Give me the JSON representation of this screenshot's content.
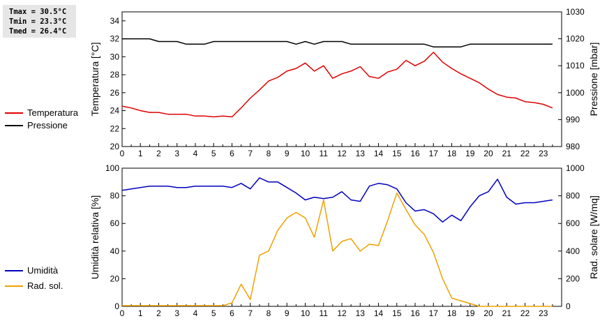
{
  "stats": {
    "tmax": "Tmax = 30.5°C",
    "tmin": "Tmin = 23.3°C",
    "tmed": "Tmed = 26.4°C"
  },
  "chart_data": [
    {
      "type": "line",
      "x_ticks": [
        "0",
        "1",
        "2",
        "3",
        "4",
        "5",
        "6",
        "7",
        "8",
        "9",
        "10",
        "11",
        "12",
        "13",
        "14",
        "15",
        "16",
        "17",
        "18",
        "19",
        "20",
        "21",
        "22",
        "23"
      ],
      "xlim": [
        0,
        24
      ],
      "ylabel_left": "Temperatura [°C]",
      "ylim_left": [
        20,
        35
      ],
      "yticks_left": [
        "20",
        "22",
        "24",
        "26",
        "28",
        "30",
        "32",
        "34"
      ],
      "ylabel_right": "Pressione [mbar]",
      "ylim_right": [
        980,
        1030
      ],
      "yticks_right": [
        "980",
        "990",
        "1000",
        "1010",
        "1020",
        "1030"
      ],
      "grid": false,
      "legend": "left",
      "series": [
        {
          "name": "Temperatura",
          "color": "#e00000",
          "axis": "left",
          "x": [
            0,
            0.5,
            1,
            1.5,
            2,
            2.5,
            3,
            3.5,
            4,
            4.5,
            5,
            5.5,
            6,
            6.5,
            7,
            7.5,
            8,
            8.5,
            9,
            9.5,
            10,
            10.5,
            11,
            11.5,
            12,
            12.5,
            13,
            13.5,
            14,
            14.5,
            15,
            15.5,
            16,
            16.5,
            17,
            17.5,
            18,
            18.5,
            19,
            19.5,
            20,
            20.5,
            21,
            21.5,
            22,
            22.5,
            23,
            23.5
          ],
          "values": [
            24.5,
            24.3,
            24.0,
            23.8,
            23.8,
            23.6,
            23.6,
            23.6,
            23.4,
            23.4,
            23.3,
            23.4,
            23.3,
            24.3,
            25.4,
            26.3,
            27.3,
            27.7,
            28.4,
            28.7,
            29.3,
            28.4,
            29.0,
            27.6,
            28.1,
            28.4,
            28.9,
            27.8,
            27.6,
            28.3,
            28.6,
            29.6,
            29.0,
            29.5,
            30.5,
            29.4,
            28.7,
            28.1,
            27.6,
            27.1,
            26.4,
            25.8,
            25.5,
            25.4,
            25.0,
            24.9,
            24.7,
            24.3
          ]
        },
        {
          "name": "Pressione",
          "color": "#000000",
          "axis": "right",
          "x": [
            0,
            0.5,
            1,
            1.5,
            2,
            2.5,
            3,
            3.5,
            4,
            4.5,
            5,
            5.5,
            6,
            6.5,
            7,
            7.5,
            8,
            8.5,
            9,
            9.5,
            10,
            10.5,
            11,
            11.5,
            12,
            12.5,
            13,
            13.5,
            14,
            14.5,
            15,
            15.5,
            16,
            16.5,
            17,
            17.5,
            18,
            18.5,
            19,
            19.5,
            20,
            20.5,
            21,
            21.5,
            22,
            22.5,
            23,
            23.5
          ],
          "values": [
            1020,
            1020,
            1020,
            1020,
            1019,
            1019,
            1019,
            1018,
            1018,
            1018,
            1019,
            1019,
            1019,
            1019,
            1019,
            1019,
            1019,
            1019,
            1019,
            1018,
            1019,
            1018,
            1019,
            1019,
            1019,
            1018,
            1018,
            1018,
            1018,
            1018,
            1018,
            1018,
            1018,
            1018,
            1017,
            1017,
            1017,
            1017,
            1018,
            1018,
            1018,
            1018,
            1018,
            1018,
            1018,
            1018,
            1018,
            1018
          ]
        }
      ]
    },
    {
      "type": "line",
      "x_ticks": [
        "0",
        "1",
        "2",
        "3",
        "4",
        "5",
        "6",
        "7",
        "8",
        "9",
        "10",
        "11",
        "12",
        "13",
        "14",
        "15",
        "16",
        "17",
        "18",
        "19",
        "20",
        "21",
        "22",
        "23"
      ],
      "xlim": [
        0,
        24
      ],
      "ylabel_left": "Umidità relativa [%]",
      "ylim_left": [
        0,
        100
      ],
      "yticks_left": [
        "0",
        "20",
        "40",
        "60",
        "80",
        "100"
      ],
      "ylabel_right": "Rad. solare [W/mq]",
      "ylim_right": [
        0,
        1000
      ],
      "yticks_right": [
        "0",
        "200",
        "400",
        "600",
        "800",
        "1000"
      ],
      "grid": false,
      "legend": "left",
      "series": [
        {
          "name": "Umidità",
          "color": "#0000c0",
          "axis": "left",
          "x": [
            0,
            0.5,
            1,
            1.5,
            2,
            2.5,
            3,
            3.5,
            4,
            4.5,
            5,
            5.5,
            6,
            6.5,
            7,
            7.5,
            8,
            8.5,
            9,
            9.5,
            10,
            10.5,
            11,
            11.5,
            12,
            12.5,
            13,
            13.5,
            14,
            14.5,
            15,
            15.5,
            16,
            16.5,
            17,
            17.5,
            18,
            18.5,
            19,
            19.5,
            20,
            20.5,
            21,
            21.5,
            22,
            22.5,
            23,
            23.5
          ],
          "values": [
            84,
            85,
            86,
            87,
            87,
            87,
            86,
            86,
            87,
            87,
            87,
            87,
            86,
            89,
            85,
            93,
            90,
            90,
            86,
            82,
            77,
            79,
            78,
            79,
            83,
            77,
            76,
            87,
            89,
            88,
            85,
            75,
            69,
            70,
            67,
            61,
            66,
            62,
            72,
            80,
            83,
            92,
            79,
            74,
            75,
            75,
            76,
            77
          ]
        },
        {
          "name": "Rad. sol.",
          "color": "#f0a000",
          "axis": "right",
          "x": [
            0,
            0.5,
            1,
            1.5,
            2,
            2.5,
            3,
            3.5,
            4,
            4.5,
            5,
            5.5,
            6,
            6.5,
            7,
            7.5,
            8,
            8.5,
            9,
            9.5,
            10,
            10.5,
            11,
            11.5,
            12,
            12.5,
            13,
            13.5,
            14,
            14.5,
            15,
            15.5,
            16,
            16.5,
            17,
            17.5,
            18,
            18.5,
            19,
            19.5,
            20,
            20.5,
            21,
            21.5,
            22,
            22.5,
            23,
            23.5
          ],
          "values": [
            5,
            5,
            5,
            5,
            5,
            5,
            5,
            5,
            5,
            5,
            5,
            5,
            25,
            160,
            50,
            370,
            400,
            550,
            640,
            680,
            640,
            500,
            770,
            400,
            470,
            490,
            400,
            450,
            440,
            620,
            820,
            700,
            590,
            520,
            390,
            200,
            60,
            40,
            20,
            0,
            0,
            0,
            0,
            0,
            0,
            0,
            0,
            0
          ]
        }
      ]
    }
  ]
}
